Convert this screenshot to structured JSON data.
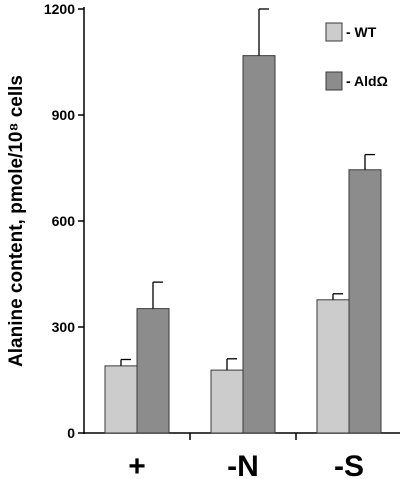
{
  "chart_data": {
    "type": "bar",
    "categories": [
      "+",
      "-N",
      "-S"
    ],
    "series": [
      {
        "name": "WT",
        "values": [
          190,
          178,
          377
        ],
        "errors": [
          18,
          32,
          17
        ],
        "color": "#cccccc"
      },
      {
        "name": "AldΩ",
        "values": [
          352,
          1068,
          745
        ],
        "errors": [
          75,
          132,
          43
        ],
        "color": "#8c8c8c"
      }
    ],
    "ylabel": "Alanine content, pmole/10⁸ cells",
    "xlabel": "",
    "ylim": [
      0,
      1200
    ],
    "yticks": [
      0,
      300,
      600,
      900,
      1200
    ],
    "legend": {
      "position": "top-right",
      "entries": [
        "- WT",
        "- AldΩ"
      ]
    },
    "grid": false
  }
}
